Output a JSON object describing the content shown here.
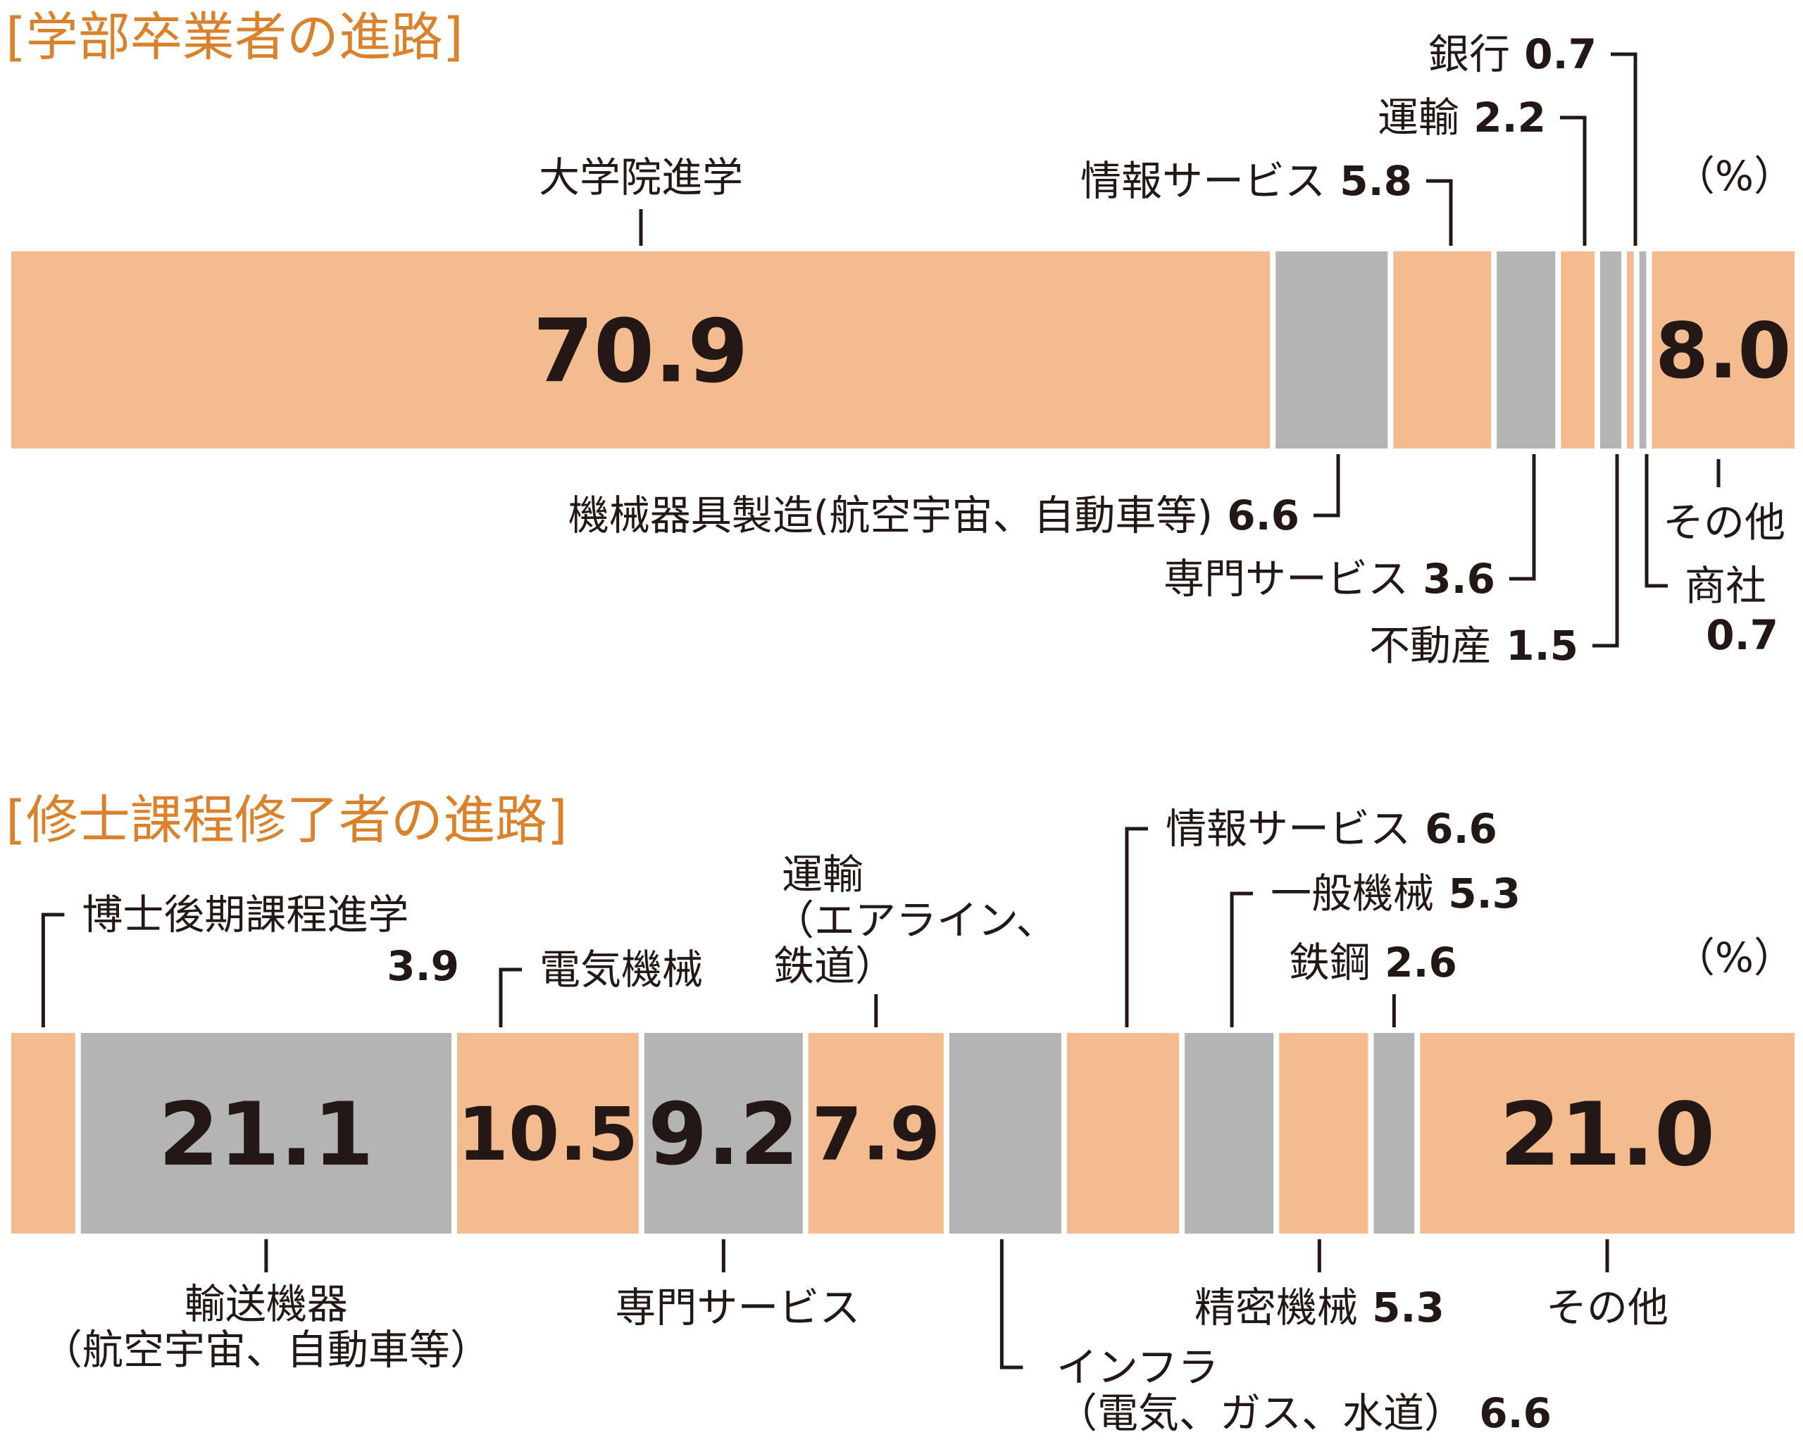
{
  "colors": {
    "accent": "#d9822b",
    "peach": "#f4bb8f",
    "gray": "#b4b4b4",
    "ink": "#231815"
  },
  "unit": "（%）",
  "chart_data": [
    {
      "type": "bar",
      "stacked": true,
      "orientation": "horizontal",
      "title": "[学部卒業者の進路]",
      "unit": "（%）",
      "series": [
        {
          "name": "大学院進学",
          "value": 70.9,
          "color": "peach"
        },
        {
          "name": "機械器具製造(航空宇宙、自動車等)",
          "value": 6.6,
          "color": "gray"
        },
        {
          "name": "情報サービス",
          "value": 5.8,
          "color": "peach"
        },
        {
          "name": "専門サービス",
          "value": 3.6,
          "color": "gray"
        },
        {
          "name": "運輸",
          "value": 2.2,
          "color": "peach"
        },
        {
          "name": "不動産",
          "value": 1.5,
          "color": "gray"
        },
        {
          "name": "銀行",
          "value": 0.7,
          "color": "peach"
        },
        {
          "name": "商社",
          "value": 0.7,
          "color": "gray"
        },
        {
          "name": "その他",
          "value": 8.0,
          "color": "peach"
        }
      ],
      "labels": [
        {
          "text": "大学院進学",
          "value": ""
        },
        {
          "text": "機械器具製造(航空宇宙、自動車等)",
          "value": "6.6"
        },
        {
          "text": "情報サービス",
          "value": "5.8"
        },
        {
          "text": "専門サービス",
          "value": "3.6"
        },
        {
          "text": "運輸",
          "value": "2.2"
        },
        {
          "text": "不動産",
          "value": "1.5"
        },
        {
          "text": "銀行",
          "value": "0.7"
        },
        {
          "text": "商社",
          "value": "0.7"
        },
        {
          "text": "その他",
          "value": ""
        }
      ],
      "inside_labels": [
        "70.9",
        "",
        "",
        "",
        "",
        "",
        "",
        "",
        "8.0"
      ]
    },
    {
      "type": "bar",
      "stacked": true,
      "orientation": "horizontal",
      "title": "[修士課程修了者の進路]",
      "unit": "（%）",
      "series": [
        {
          "name": "博士後期課程進学",
          "value": 3.9,
          "color": "peach"
        },
        {
          "name": "輸送機器(航空宇宙、自動車等)",
          "value": 21.1,
          "color": "gray"
        },
        {
          "name": "電気機械",
          "value": 10.5,
          "color": "peach"
        },
        {
          "name": "専門サービス",
          "value": 9.2,
          "color": "gray"
        },
        {
          "name": "運輸(エアライン、鉄道)",
          "value": 7.9,
          "color": "peach"
        },
        {
          "name": "インフラ(電気、ガス、水道)",
          "value": 6.6,
          "color": "gray"
        },
        {
          "name": "情報サービス",
          "value": 6.6,
          "color": "peach"
        },
        {
          "name": "一般機械",
          "value": 5.3,
          "color": "gray"
        },
        {
          "name": "精密機械",
          "value": 5.3,
          "color": "peach"
        },
        {
          "name": "鉄鋼",
          "value": 2.6,
          "color": "gray"
        },
        {
          "name": "その他",
          "value": 21.0,
          "color": "peach"
        }
      ],
      "labels": [
        {
          "lines": [
            "博士後期課程進学"
          ],
          "value": "3.9"
        },
        {
          "lines": [
            "輸送機器",
            "（航空宇宙、自動車等）"
          ],
          "value": ""
        },
        {
          "lines": [
            "電気機械"
          ],
          "value": ""
        },
        {
          "lines": [
            "専門サービス"
          ],
          "value": ""
        },
        {
          "lines": [
            "運輸",
            "（エアライン、",
            "鉄道）"
          ],
          "value": ""
        },
        {
          "lines": [
            "インフラ",
            "（電気、ガス、水道）"
          ],
          "value": "6.6"
        },
        {
          "lines": [
            "情報サービス"
          ],
          "value": "6.6"
        },
        {
          "lines": [
            "一般機械"
          ],
          "value": "5.3"
        },
        {
          "lines": [
            "精密機械"
          ],
          "value": "5.3"
        },
        {
          "lines": [
            "鉄鋼"
          ],
          "value": "2.6"
        },
        {
          "lines": [
            "その他"
          ],
          "value": ""
        }
      ],
      "inside_labels": [
        "",
        "21.1",
        "10.5",
        "9.2",
        "7.9",
        "",
        "",
        "",
        "",
        "",
        "21.0"
      ]
    }
  ]
}
